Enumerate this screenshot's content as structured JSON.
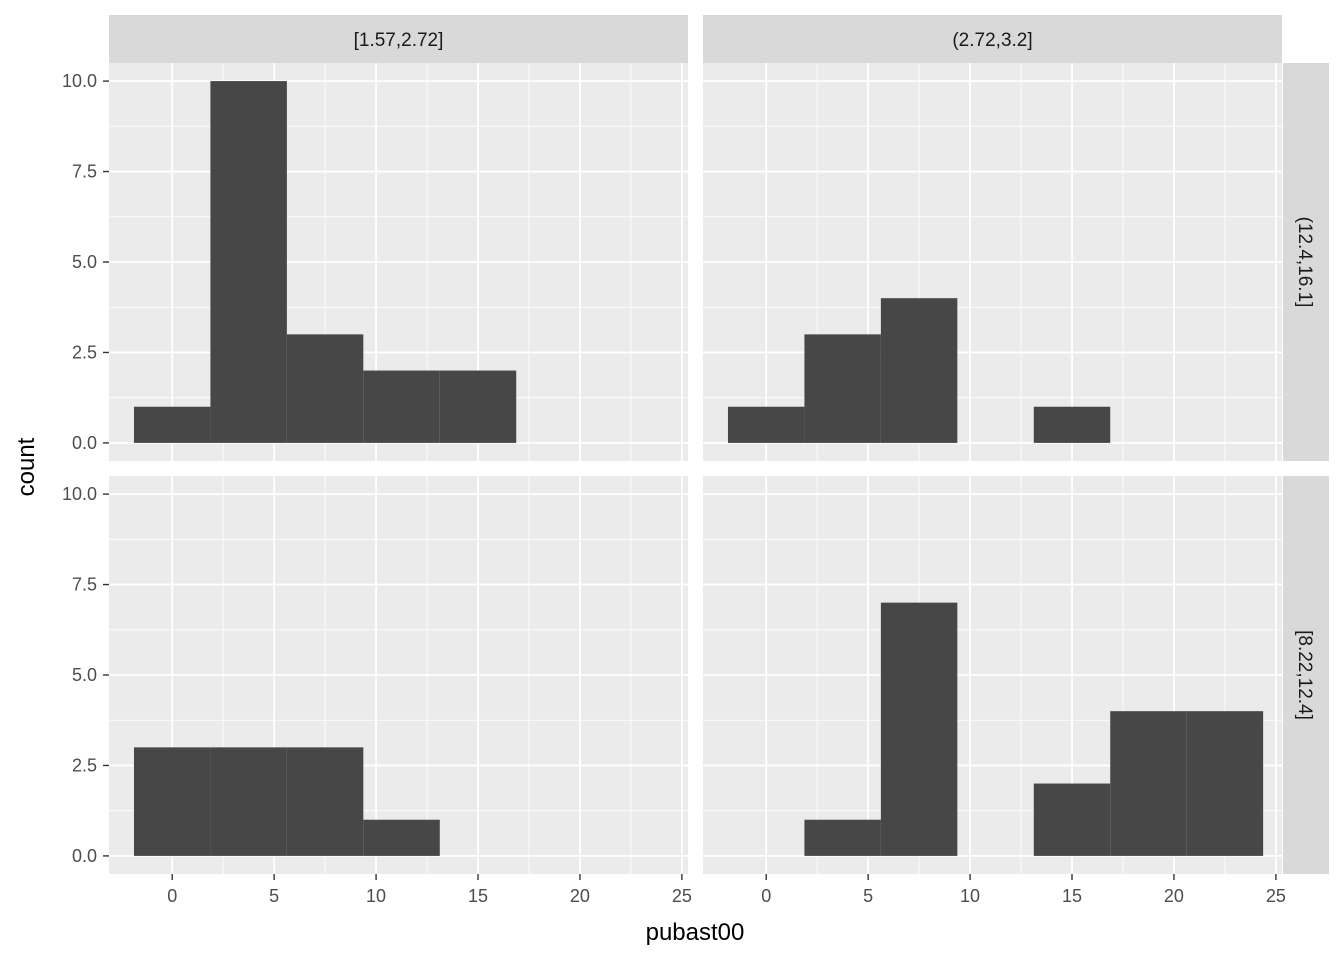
{
  "chart_data": {
    "type": "bar",
    "subtype": "faceted-histogram",
    "title": "",
    "xlabel": "pubast00",
    "ylabel": "count",
    "xlim": [
      -3.1,
      25.3
    ],
    "ylim": [
      -0.5,
      10.5
    ],
    "x_ticks": [
      0,
      5,
      10,
      15,
      20,
      25
    ],
    "y_ticks": [
      0,
      2.5,
      5,
      7.5,
      10
    ],
    "y_tick_labels": [
      "0.0",
      "2.5",
      "5.0",
      "7.5",
      "10.0"
    ],
    "bin_width": 3.75,
    "bin_edges": [
      -1.875,
      1.875,
      5.625,
      9.375,
      13.125,
      16.875,
      20.625,
      24.375
    ],
    "bin_centers": [
      0,
      3.75,
      7.5,
      11.25,
      15,
      18.75,
      22.5
    ],
    "grid": true,
    "column_facets": [
      "[1.57,2.72]",
      "(2.72,3.2]"
    ],
    "row_facets": [
      "(12.4,16.1]",
      "[8.22,12.4]"
    ],
    "panels": [
      {
        "row": "(12.4,16.1]",
        "col": "[1.57,2.72]",
        "counts": [
          1,
          10,
          3,
          2,
          2,
          0,
          0
        ]
      },
      {
        "row": "(12.4,16.1]",
        "col": "(2.72,3.2]",
        "counts": [
          1,
          3,
          4,
          0,
          1,
          0,
          0
        ]
      },
      {
        "row": "[8.22,12.4]",
        "col": "[1.57,2.72]",
        "counts": [
          3,
          3,
          3,
          1,
          0,
          0,
          0
        ]
      },
      {
        "row": "[8.22,12.4]",
        "col": "(2.72,3.2]",
        "counts": [
          0,
          1,
          7,
          0,
          2,
          4,
          4
        ]
      }
    ],
    "colors": {
      "bar": "#474747",
      "panel_background": "#EBEBEB",
      "grid": "#FFFFFF",
      "strip_background": "#D9D9D9"
    }
  }
}
